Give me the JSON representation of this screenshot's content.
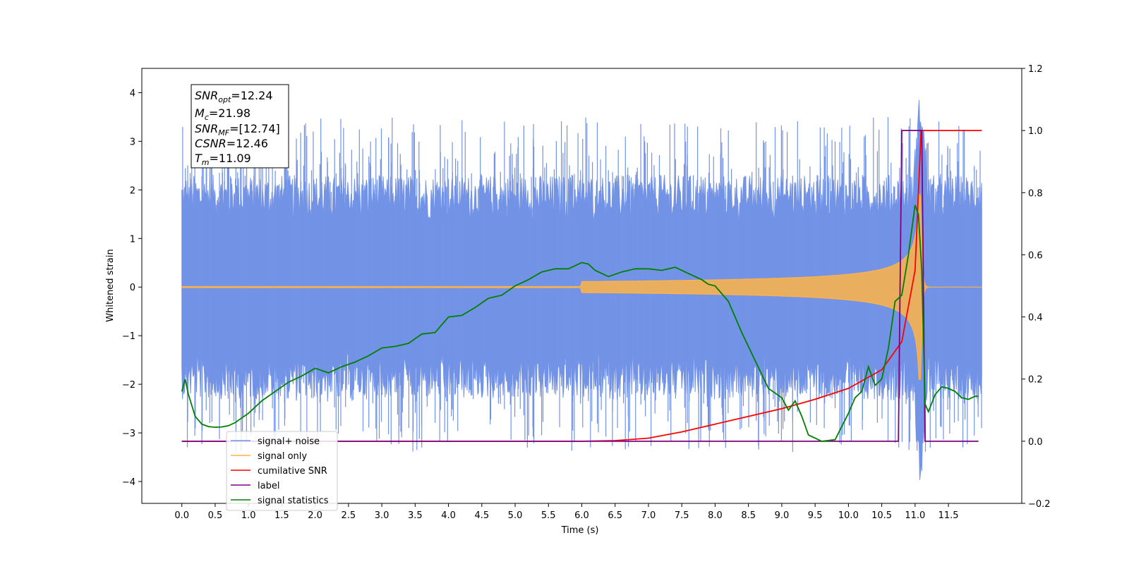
{
  "chart_data": {
    "type": "line",
    "xlabel": "Time (s)",
    "ylabel": "Whitened strain",
    "xlim": [
      -0.6,
      12.6
    ],
    "ylim": [
      -4.45,
      4.5
    ],
    "ylim_right": [
      -0.2,
      1.2
    ],
    "x_ticks": [
      "0.0",
      "0.5",
      "1.0",
      "1.5",
      "2.0",
      "2.5",
      "3.0",
      "3.5",
      "4.0",
      "4.5",
      "5.0",
      "5.5",
      "6.0",
      "6.5",
      "7.0",
      "7.5",
      "8.0",
      "8.5",
      "9.0",
      "9.5",
      "10.0",
      "10.5",
      "11.0",
      "11.5"
    ],
    "y_ticks_left": [
      "4",
      "3",
      "2",
      "1",
      "0",
      "−1",
      "−2",
      "−3",
      "−4"
    ],
    "y_ticks_right": [
      "1.2",
      "1.0",
      "0.8",
      "0.6",
      "0.4",
      "0.2",
      "0.0",
      "−0.2"
    ],
    "grid": false,
    "legend_position": "lower-left",
    "annotation": {
      "snr_opt": {
        "sym": "SNR",
        "sub": "opt",
        "value": "=12.24"
      },
      "mc": {
        "sym": "M",
        "sub": "c",
        "value": "=21.98"
      },
      "snr_mf": {
        "sym": "SNR",
        "sub": "MF",
        "value": "=[12.74]"
      },
      "csnr": {
        "sym": "CSNR",
        "value": "=12.46"
      },
      "tm": {
        "sym": "T",
        "sub": "m",
        "value": "=11.09"
      }
    },
    "series": [
      {
        "name": "signal+ noise",
        "axis": "left",
        "color": "#7393e6",
        "t_start": 0.0,
        "t_end": 12.0,
        "envelope_max": 2.1,
        "envelope_min": -2.1,
        "peak_high": 4.1,
        "peak_low": -4.05,
        "peak_time": 11.08
      },
      {
        "name": "signal only",
        "axis": "left",
        "color": "#ffb347",
        "t_start": 0.0,
        "t_end": 12.0,
        "merger_time": 11.09,
        "peak_amplitude": 1.9
      },
      {
        "name": "cumilative SNR",
        "axis": "right",
        "color": "#ff0000",
        "x": [
          0.0,
          6.0,
          6.5,
          7.0,
          7.5,
          8.0,
          8.5,
          9.0,
          9.5,
          10.0,
          10.5,
          10.8,
          11.0,
          11.09,
          11.1,
          12.0
        ],
        "y": [
          0.0,
          0.0,
          0.002,
          0.01,
          0.03,
          0.055,
          0.08,
          0.105,
          0.135,
          0.17,
          0.23,
          0.32,
          0.55,
          1.0,
          1.0,
          1.0
        ]
      },
      {
        "name": "label",
        "axis": "right",
        "color": "#800080",
        "x": [
          0.0,
          10.75,
          10.8,
          11.1,
          11.15,
          11.95
        ],
        "y": [
          0.0,
          0.0,
          1.0,
          1.0,
          0.0,
          0.0
        ]
      },
      {
        "name": "signal statistics",
        "axis": "right",
        "color": "#008000",
        "x": [
          0.0,
          0.05,
          0.1,
          0.2,
          0.3,
          0.4,
          0.5,
          0.6,
          0.7,
          0.8,
          0.9,
          1.0,
          1.2,
          1.4,
          1.6,
          1.8,
          2.0,
          2.2,
          2.4,
          2.6,
          2.8,
          3.0,
          3.2,
          3.4,
          3.6,
          3.8,
          4.0,
          4.2,
          4.4,
          4.6,
          4.8,
          5.0,
          5.2,
          5.4,
          5.6,
          5.8,
          6.0,
          6.1,
          6.2,
          6.4,
          6.6,
          6.8,
          7.0,
          7.2,
          7.4,
          7.6,
          7.8,
          7.9,
          8.0,
          8.2,
          8.4,
          8.6,
          8.8,
          9.0,
          9.1,
          9.2,
          9.3,
          9.4,
          9.6,
          9.8,
          10.0,
          10.1,
          10.2,
          10.3,
          10.4,
          10.5,
          10.6,
          10.7,
          10.8,
          10.9,
          11.0,
          11.05,
          11.1,
          11.15,
          11.2,
          11.3,
          11.4,
          11.5,
          11.6,
          11.7,
          11.8,
          11.9,
          11.95
        ],
        "y": [
          0.16,
          0.2,
          0.15,
          0.08,
          0.055,
          0.047,
          0.045,
          0.046,
          0.05,
          0.06,
          0.075,
          0.09,
          0.13,
          0.16,
          0.19,
          0.21,
          0.235,
          0.22,
          0.24,
          0.255,
          0.275,
          0.3,
          0.305,
          0.315,
          0.345,
          0.35,
          0.4,
          0.405,
          0.43,
          0.46,
          0.47,
          0.5,
          0.52,
          0.545,
          0.555,
          0.555,
          0.575,
          0.57,
          0.55,
          0.53,
          0.545,
          0.555,
          0.555,
          0.55,
          0.56,
          0.54,
          0.52,
          0.505,
          0.5,
          0.45,
          0.35,
          0.26,
          0.17,
          0.14,
          0.1,
          0.13,
          0.08,
          0.02,
          0.0,
          0.005,
          0.09,
          0.14,
          0.16,
          0.24,
          0.18,
          0.2,
          0.3,
          0.45,
          0.47,
          0.6,
          0.76,
          0.73,
          0.55,
          0.12,
          0.095,
          0.15,
          0.175,
          0.17,
          0.16,
          0.14,
          0.135,
          0.145,
          0.145
        ]
      }
    ]
  }
}
